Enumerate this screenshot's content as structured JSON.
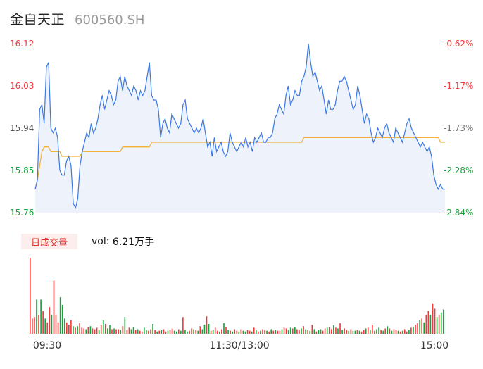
{
  "header": {
    "name": "金自天正",
    "code": "600560.SH"
  },
  "volume_panel": {
    "tab_label": "日成交量",
    "readout_label": "vol:",
    "readout_value": "6.21万手"
  },
  "colors": {
    "price_line": "#3a78e6",
    "price_fill": "#eef3fb",
    "avg_line": "#f1b33a",
    "up": "#ef3b3b",
    "down": "#1aa33c",
    "axis_text": "#333333"
  },
  "chart_data": [
    {
      "type": "line",
      "ylim": [
        15.76,
        16.12
      ],
      "y_ticks": [
        "16.12",
        "16.03",
        "15.94",
        "15.85",
        "15.76"
      ],
      "y_ticks_right": [
        "-0.62%",
        "-1.17%",
        "-1.73%",
        "-2.28%",
        "-2.84%"
      ],
      "x_ticks": [
        "09:30",
        "11:30/13:00",
        "15:00"
      ],
      "series": [
        {
          "key": "price",
          "values": [
            15.81,
            15.83,
            15.98,
            15.99,
            15.95,
            16.07,
            16.08,
            15.94,
            15.93,
            15.94,
            15.92,
            15.85,
            15.84,
            15.84,
            15.87,
            15.88,
            15.86,
            15.78,
            15.77,
            15.79,
            15.86,
            15.89,
            15.91,
            15.93,
            15.92,
            15.95,
            15.93,
            15.94,
            15.96,
            15.99,
            16.01,
            15.98,
            16.0,
            16.02,
            16.01,
            15.99,
            16.0,
            16.04,
            16.05,
            16.02,
            16.05,
            16.03,
            16.02,
            16.01,
            16.03,
            16.02,
            16.0,
            16.02,
            16.01,
            16.02,
            16.05,
            16.08,
            16.01,
            16.0,
            16.0,
            15.98,
            15.92,
            15.95,
            15.96,
            15.94,
            15.93,
            15.97,
            15.96,
            15.95,
            15.94,
            15.95,
            15.99,
            16.0,
            15.96,
            15.95,
            15.94,
            15.93,
            15.94,
            15.93,
            15.94,
            15.96,
            15.93,
            15.9,
            15.91,
            15.88,
            15.92,
            15.89,
            15.9,
            15.91,
            15.89,
            15.88,
            15.89,
            15.93,
            15.91,
            15.9,
            15.89,
            15.9,
            15.91,
            15.9,
            15.92,
            15.9,
            15.91,
            15.89,
            15.92,
            15.91,
            15.92,
            15.93,
            15.91,
            15.91,
            15.92,
            15.92,
            15.93,
            15.96,
            15.97,
            15.99,
            15.98,
            15.97,
            16.01,
            16.03,
            15.99,
            16.0,
            16.02,
            16.01,
            16.01,
            16.04,
            16.05,
            16.07,
            16.12,
            16.08,
            16.05,
            16.06,
            16.04,
            16.02,
            16.03,
            16.0,
            15.97,
            16.0,
            15.98,
            15.98,
            15.99,
            16.02,
            16.04,
            16.04,
            16.05,
            16.04,
            16.02,
            16.0,
            15.98,
            15.99,
            16.03,
            16.01,
            15.98,
            15.95,
            15.97,
            15.96,
            15.93,
            15.91,
            15.92,
            15.94,
            15.93,
            15.92,
            15.94,
            15.95,
            15.93,
            15.92,
            15.91,
            15.94,
            15.93,
            15.92,
            15.91,
            15.93,
            15.95,
            15.96,
            15.94,
            15.93,
            15.92,
            15.91,
            15.9,
            15.91,
            15.9,
            15.89,
            15.9,
            15.88,
            15.84,
            15.82,
            15.81,
            15.82,
            15.81,
            15.81
          ]
        },
        {
          "key": "avg",
          "values": [
            15.81,
            15.83,
            15.86,
            15.89,
            15.9,
            15.9,
            15.9,
            15.89,
            15.89,
            15.89,
            15.89,
            15.89,
            15.88,
            15.88,
            15.88,
            15.88,
            15.88,
            15.88,
            15.88,
            15.88,
            15.88,
            15.89,
            15.89,
            15.89,
            15.89,
            15.89,
            15.89,
            15.89,
            15.89,
            15.89,
            15.89,
            15.89,
            15.89,
            15.89,
            15.89,
            15.89,
            15.89,
            15.89,
            15.89,
            15.9,
            15.9,
            15.9,
            15.9,
            15.9,
            15.9,
            15.9,
            15.9,
            15.9,
            15.9,
            15.9,
            15.9,
            15.9,
            15.91,
            15.91,
            15.91,
            15.91,
            15.91,
            15.91,
            15.91,
            15.91,
            15.91,
            15.91,
            15.91,
            15.91,
            15.91,
            15.91,
            15.91,
            15.91,
            15.91,
            15.91,
            15.91,
            15.91,
            15.91,
            15.91,
            15.91,
            15.91,
            15.91,
            15.91,
            15.91,
            15.91,
            15.91,
            15.91,
            15.91,
            15.91,
            15.91,
            15.91,
            15.91,
            15.91,
            15.91,
            15.91,
            15.91,
            15.91,
            15.91,
            15.91,
            15.91,
            15.91,
            15.91,
            15.91,
            15.91,
            15.91,
            15.91,
            15.91,
            15.91,
            15.91,
            15.91,
            15.91,
            15.91,
            15.91,
            15.91,
            15.91,
            15.91,
            15.91,
            15.91,
            15.91,
            15.91,
            15.91,
            15.91,
            15.91,
            15.91,
            15.91,
            15.92,
            15.92,
            15.92,
            15.92,
            15.92,
            15.92,
            15.92,
            15.92,
            15.92,
            15.92,
            15.92,
            15.92,
            15.92,
            15.92,
            15.92,
            15.92,
            15.92,
            15.92,
            15.92,
            15.92,
            15.92,
            15.92,
            15.92,
            15.92,
            15.92,
            15.92,
            15.92,
            15.92,
            15.92,
            15.92,
            15.92,
            15.92,
            15.92,
            15.92,
            15.92,
            15.92,
            15.92,
            15.92,
            15.92,
            15.92,
            15.92,
            15.92,
            15.92,
            15.92,
            15.92,
            15.92,
            15.92,
            15.92,
            15.92,
            15.92,
            15.92,
            15.92,
            15.92,
            15.92,
            15.92,
            15.92,
            15.92,
            15.92,
            15.92,
            15.92,
            15.92,
            15.91,
            15.91,
            15.91
          ]
        }
      ]
    },
    {
      "type": "bar",
      "values": [
        100,
        20,
        22,
        45,
        25,
        45,
        30,
        20,
        15,
        35,
        25,
        70,
        25,
        15,
        48,
        38,
        20,
        15,
        12,
        18,
        10,
        8,
        10,
        14,
        8,
        7,
        6,
        9,
        10,
        7,
        6,
        8,
        5,
        12,
        18,
        13,
        7,
        12,
        6,
        7,
        6,
        6,
        5,
        10,
        22,
        5,
        8,
        6,
        9,
        5,
        6,
        4,
        3,
        8,
        5,
        4,
        6,
        13,
        5,
        3,
        4,
        5,
        6,
        3,
        4,
        5,
        7,
        4,
        3,
        6,
        4,
        22,
        5,
        3,
        4,
        7,
        6,
        5,
        4,
        10,
        6,
        12,
        23,
        13,
        4,
        5,
        8,
        4,
        3,
        6,
        14,
        9,
        5,
        4,
        3,
        6,
        4,
        3,
        6,
        4,
        3,
        5,
        4,
        3,
        8,
        5,
        3,
        4,
        6,
        5,
        4,
        3,
        6,
        4,
        5,
        4,
        4,
        6,
        8,
        7,
        5,
        8,
        7,
        9,
        6,
        5,
        7,
        10,
        6,
        5,
        4,
        12,
        6,
        3,
        5,
        6,
        4,
        7,
        8,
        9,
        6,
        11,
        8,
        7,
        14,
        5,
        7,
        5,
        4,
        6,
        4,
        4,
        5,
        4,
        3,
        5,
        7,
        8,
        5,
        12,
        4,
        6,
        8,
        5,
        4,
        7,
        10,
        7,
        4,
        6,
        5,
        4,
        3,
        4,
        6,
        3,
        5,
        8,
        9,
        12,
        14,
        18,
        20,
        15,
        25,
        30,
        25,
        40,
        33,
        22,
        25,
        28,
        32
      ],
      "up": [
        true,
        true,
        true,
        false,
        true,
        false,
        true,
        false,
        true,
        true,
        false,
        true,
        true,
        true,
        false,
        false,
        false,
        true,
        true,
        true,
        false,
        true,
        false,
        true,
        true,
        true,
        false,
        true,
        false,
        true,
        true,
        true,
        false,
        true,
        false,
        true,
        false,
        false,
        true,
        false,
        true,
        true,
        false,
        true,
        false,
        true,
        true,
        false,
        false,
        true,
        false,
        true,
        true,
        false,
        false,
        true,
        true,
        false,
        true,
        false,
        true,
        false,
        true,
        true,
        false,
        true,
        true,
        false,
        false,
        true,
        false,
        true,
        false,
        false,
        true,
        true,
        false,
        true,
        false,
        true,
        false,
        false,
        true,
        false,
        true,
        false,
        true,
        true,
        false,
        true,
        false,
        true,
        false,
        true,
        false,
        true,
        true,
        false,
        true,
        false,
        false,
        true,
        true,
        false,
        true,
        false,
        true,
        false,
        true,
        true,
        false,
        true,
        false,
        true,
        false,
        true,
        true,
        false,
        true,
        true,
        false,
        false,
        true,
        false,
        true,
        true,
        false,
        true,
        false,
        true,
        false,
        true,
        false,
        true,
        false,
        false,
        true,
        true,
        false,
        true,
        true,
        false,
        true,
        false,
        true,
        false,
        true,
        true,
        false,
        true,
        false,
        false,
        true,
        false,
        true,
        true,
        false,
        true,
        false,
        true,
        true,
        false,
        false,
        true,
        false,
        true,
        false,
        true,
        false,
        true,
        true,
        false,
        true,
        false,
        true,
        true,
        false,
        true,
        false,
        true,
        true,
        false,
        true,
        false,
        true,
        true,
        false,
        true,
        true,
        false,
        true
      ]
    }
  ]
}
